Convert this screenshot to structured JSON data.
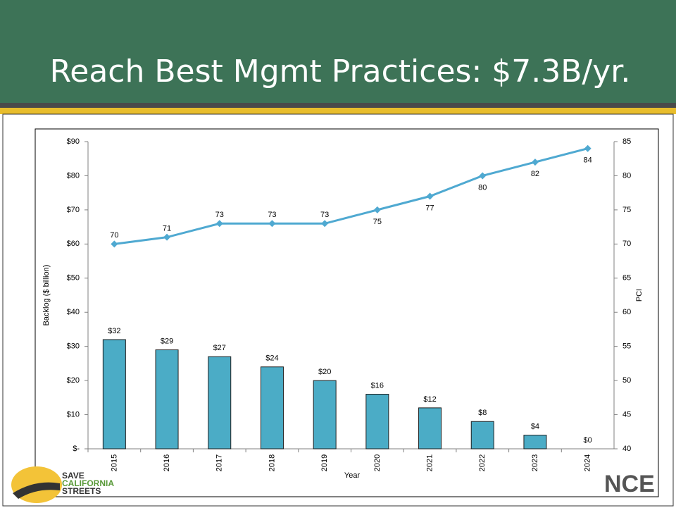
{
  "chart_data": {
    "type": "bar_line",
    "title": "Reach Best Mgmt Practices: $7.3B/yr.",
    "x_label": "Year",
    "y_label": "Backlog ($ billion)",
    "y2_label": "PCI",
    "categories": [
      "2015",
      "2016",
      "2017",
      "2018",
      "2019",
      "2020",
      "2021",
      "2022",
      "2023",
      "2024"
    ],
    "series": [
      {
        "name": "Backlog",
        "type": "bar",
        "color": "#4bacc6",
        "values": [
          32,
          29,
          27,
          24,
          20,
          16,
          12,
          8,
          4,
          0
        ],
        "value_labels": [
          "$32",
          "$29",
          "$27",
          "$24",
          "$20",
          "$16",
          "$12",
          "$8",
          "$4",
          "$0"
        ]
      },
      {
        "name": "PCI",
        "type": "line",
        "axis": "y2",
        "color": "#4fa9d1",
        "values": [
          70,
          71,
          73,
          73,
          73,
          75,
          77,
          80,
          82,
          84
        ]
      }
    ],
    "ylim": [
      0,
      90
    ],
    "yticks": [
      {
        "value": 0,
        "label": "$-"
      },
      {
        "value": 10,
        "label": "$10"
      },
      {
        "value": 20,
        "label": "$20"
      },
      {
        "value": 30,
        "label": "$30"
      },
      {
        "value": 40,
        "label": "$40"
      },
      {
        "value": 50,
        "label": "$50"
      },
      {
        "value": 60,
        "label": "$60"
      },
      {
        "value": 70,
        "label": "$70"
      },
      {
        "value": 80,
        "label": "$80"
      },
      {
        "value": 90,
        "label": "$90"
      }
    ],
    "y2lim": [
      40,
      85
    ],
    "y2ticks": [
      40,
      45,
      50,
      55,
      60,
      65,
      70,
      75,
      80,
      85
    ],
    "grid": false
  },
  "logo_left": [
    "SAVE",
    "CALIFORNIA",
    "STREETS"
  ],
  "logo_right": "NCE"
}
